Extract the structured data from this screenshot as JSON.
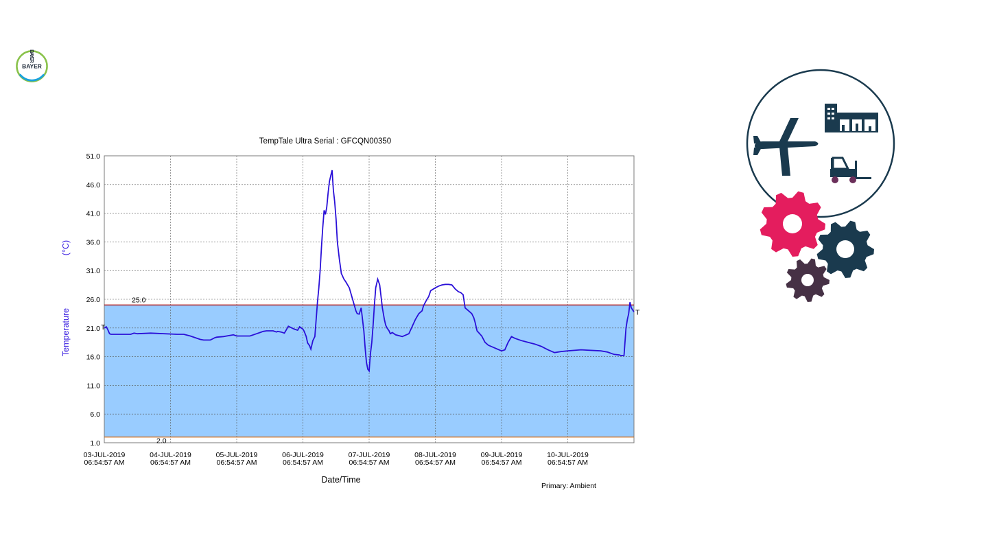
{
  "logo": {
    "text_h": "BAYER",
    "text_v": "BAYER"
  },
  "colors": {
    "series": "#2a10d8",
    "band": "#99ccff",
    "upper_limit": "#b01515",
    "lower_limit": "#d07020",
    "ylabel": "#3a1fe0"
  },
  "chart_data": {
    "type": "line",
    "title": "TempTale Ultra  Serial : GFCQN00350",
    "xlabel": "Date/Time",
    "ylabel": "Temperature",
    "ylabel_unit": "(°C)",
    "footnote": "Primary: Ambient",
    "ylim": [
      1.0,
      51.0
    ],
    "yticks": [
      "1.0",
      "6.0",
      "11.0",
      "16.0",
      "21.0",
      "26.0",
      "31.0",
      "36.0",
      "41.0",
      "46.0",
      "51.0"
    ],
    "xlim": [
      0,
      8.0
    ],
    "xticks": [
      {
        "x": 0,
        "date": "03-JUL-2019",
        "time": "06:54:57 AM"
      },
      {
        "x": 1,
        "date": "04-JUL-2019",
        "time": "06:54:57 AM"
      },
      {
        "x": 2,
        "date": "05-JUL-2019",
        "time": "06:54:57 AM"
      },
      {
        "x": 3,
        "date": "06-JUL-2019",
        "time": "06:54:57 AM"
      },
      {
        "x": 4,
        "date": "07-JUL-2019",
        "time": "06:54:57 AM"
      },
      {
        "x": 5,
        "date": "08-JUL-2019",
        "time": "06:54:57 AM"
      },
      {
        "x": 6,
        "date": "09-JUL-2019",
        "time": "06:54:57 AM"
      },
      {
        "x": 7,
        "date": "10-JUL-2019",
        "time": "06:54:57 AM"
      }
    ],
    "grid": true,
    "limits": [
      {
        "name": "upper",
        "value": 25.0,
        "label": "25.0"
      },
      {
        "name": "lower",
        "value": 2.0,
        "label": "2.0"
      }
    ],
    "markers": {
      "start": "T",
      "end": "T"
    },
    "series": [
      {
        "x": [
          0,
          0.03,
          0.05,
          0.08,
          0.1,
          0.3,
          0.4,
          0.45,
          0.5,
          0.7,
          1.1,
          1.2,
          1.3,
          1.45,
          1.5,
          1.6,
          1.62,
          1.67,
          1.7,
          1.8,
          1.95,
          2.0,
          2.05,
          2.1,
          2.2,
          2.3,
          2.4,
          2.45,
          2.5,
          2.55,
          2.6,
          2.62,
          2.67,
          2.72,
          2.78,
          2.85,
          2.87,
          2.92,
          2.95,
          3.0,
          3.02,
          3.05,
          3.07,
          3.1,
          3.12,
          3.15,
          3.18,
          3.2,
          3.22,
          3.24,
          3.26,
          3.28,
          3.3,
          3.32,
          3.34,
          3.36,
          3.38,
          3.4,
          3.42,
          3.44,
          3.46,
          3.48,
          3.5,
          3.52,
          3.55,
          3.58,
          3.62,
          3.65,
          3.7,
          3.75,
          3.8,
          3.82,
          3.85,
          3.88,
          3.92,
          3.94,
          3.96,
          3.98,
          4.0,
          4.02,
          4.04,
          4.06,
          4.08,
          4.1,
          4.13,
          4.16,
          4.2,
          4.23,
          4.25,
          4.27,
          4.3,
          4.32,
          4.35,
          4.4,
          4.5,
          4.6,
          4.7,
          4.75,
          4.8,
          4.82,
          4.85,
          4.9,
          4.93,
          5.0,
          5.05,
          5.1,
          5.15,
          5.2,
          5.25,
          5.3,
          5.35,
          5.38,
          5.42,
          5.45,
          5.5,
          5.55,
          5.58,
          5.6,
          5.63,
          5.7,
          5.75,
          5.8,
          5.9,
          6.0,
          6.05,
          6.1,
          6.15,
          6.2,
          6.3,
          6.4,
          6.5,
          6.6,
          6.7,
          6.8,
          6.9,
          7.0,
          7.1,
          7.2,
          7.5,
          7.6,
          7.7,
          7.78,
          7.8,
          7.85,
          7.88,
          7.9,
          7.92,
          7.94,
          7.96,
          8.0
        ],
        "y": [
          21.0,
          21.2,
          20.8,
          20.0,
          19.9,
          19.9,
          19.9,
          20.1,
          20.0,
          20.1,
          19.9,
          19.9,
          19.6,
          19.0,
          18.9,
          18.9,
          19.0,
          19.3,
          19.4,
          19.5,
          19.8,
          19.6,
          19.6,
          19.6,
          19.6,
          20.0,
          20.4,
          20.5,
          20.5,
          20.5,
          20.3,
          20.4,
          20.3,
          20.1,
          21.3,
          20.9,
          20.8,
          20.6,
          21.2,
          20.8,
          20.4,
          19.5,
          18.4,
          17.9,
          17.3,
          18.8,
          19.5,
          22.5,
          25.5,
          28.0,
          31.0,
          35.0,
          38.5,
          41.5,
          40.8,
          42.0,
          44.5,
          46.5,
          47.5,
          48.5,
          45.0,
          43.0,
          40.0,
          36.0,
          33.0,
          30.5,
          29.5,
          29.0,
          28.0,
          26.0,
          24.0,
          23.5,
          23.4,
          24.5,
          20.5,
          17.5,
          15.0,
          13.8,
          13.5,
          16.5,
          18.5,
          21.5,
          25.0,
          28.0,
          29.5,
          28.5,
          24.5,
          22.5,
          21.5,
          21.0,
          20.5,
          20.0,
          20.2,
          19.8,
          19.5,
          20.0,
          22.5,
          23.5,
          24.0,
          24.8,
          25.5,
          26.5,
          27.5,
          28.0,
          28.3,
          28.5,
          28.6,
          28.6,
          28.5,
          27.8,
          27.3,
          27.2,
          26.8,
          24.5,
          24.0,
          23.5,
          22.8,
          22.0,
          20.5,
          19.6,
          18.5,
          18.0,
          17.5,
          17.0,
          17.2,
          18.5,
          19.5,
          19.2,
          18.8,
          18.5,
          18.2,
          17.8,
          17.2,
          16.7,
          16.9,
          17.0,
          17.1,
          17.2,
          17.0,
          16.8,
          16.4,
          16.3,
          16.2,
          16.2,
          21.0,
          22.5,
          23.5,
          25.5,
          24.5,
          23.8
        ]
      }
    ]
  }
}
